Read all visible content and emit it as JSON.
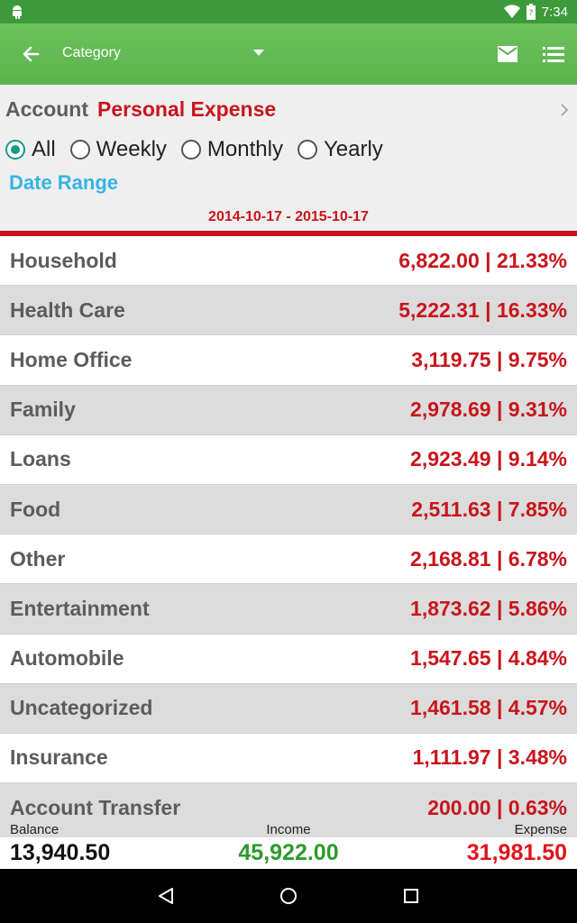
{
  "status_bar": {
    "time": "7:34",
    "icons": [
      "android-icon",
      "wifi-icon",
      "battery-icon"
    ]
  },
  "app_bar": {
    "title": "Category",
    "icons": [
      "back-arrow-icon",
      "dropdown-icon",
      "mail-icon",
      "list-icon"
    ]
  },
  "header": {
    "account_label": "Account",
    "account_name": "Personal Expense",
    "periods": [
      {
        "label": "All",
        "selected": true
      },
      {
        "label": "Weekly",
        "selected": false
      },
      {
        "label": "Monthly",
        "selected": false
      },
      {
        "label": "Yearly",
        "selected": false
      }
    ],
    "date_range_label": "Date Range",
    "date_range": "2014-10-17 - 2015-10-17"
  },
  "categories": [
    {
      "name": "Household",
      "value": "6,822.00 | 21.33%"
    },
    {
      "name": "Health Care",
      "value": "5,222.31 | 16.33%"
    },
    {
      "name": "Home Office",
      "value": "3,119.75 | 9.75%"
    },
    {
      "name": "Family",
      "value": "2,978.69 | 9.31%"
    },
    {
      "name": "Loans",
      "value": "2,923.49 | 9.14%"
    },
    {
      "name": "Food",
      "value": "2,511.63 | 7.85%"
    },
    {
      "name": "Other",
      "value": "2,168.81 | 6.78%"
    },
    {
      "name": "Entertainment",
      "value": "1,873.62 | 5.86%"
    },
    {
      "name": "Automobile",
      "value": "1,547.65 | 4.84%"
    },
    {
      "name": "Uncategorized",
      "value": "1,461.58 | 4.57%"
    },
    {
      "name": "Insurance",
      "value": "1,111.97 | 3.48%"
    },
    {
      "name": "Account Transfer",
      "value": "200.00 | 0.63%"
    }
  ],
  "summary": {
    "balance_label": "Balance",
    "balance": "13,940.50",
    "income_label": "Income",
    "income": "45,922.00",
    "expense_label": "Expense",
    "expense": "31,981.50"
  },
  "colors": {
    "app_bar": "#5cb14d",
    "status_bar": "#3d9a3a",
    "accent_red": "#c8151c",
    "income_green": "#2e9a2e",
    "date_range_blue": "#35b3e4",
    "radio_teal": "#19998a"
  }
}
